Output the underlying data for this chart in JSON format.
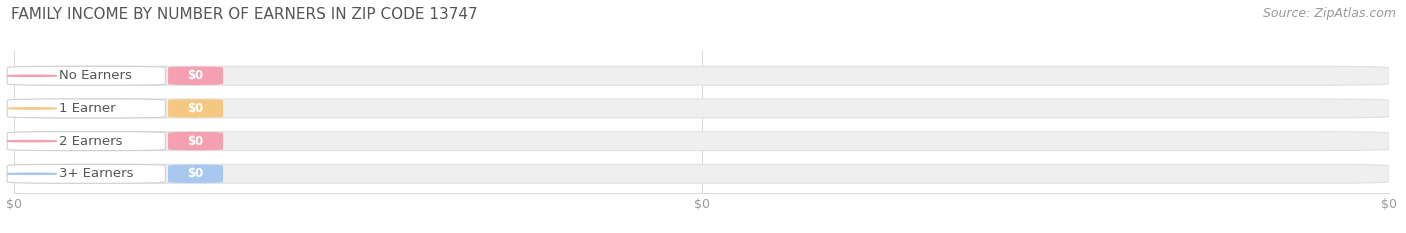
{
  "title": "FAMILY INCOME BY NUMBER OF EARNERS IN ZIP CODE 13747",
  "source": "Source: ZipAtlas.com",
  "categories": [
    "No Earners",
    "1 Earner",
    "2 Earners",
    "3+ Earners"
  ],
  "values": [
    0,
    0,
    0,
    0
  ],
  "bar_colors": [
    "#f4a0b0",
    "#f5c882",
    "#f4a0b0",
    "#a8c8f0"
  ],
  "value_labels": [
    "$0",
    "$0",
    "$0",
    "$0"
  ],
  "background_color": "#ffffff",
  "bar_bg_color": "#efefef",
  "bar_bg_edge_color": "#e0e0e0",
  "label_pill_color": "#ffffff",
  "label_pill_edge": "#d0d0d0",
  "grid_color": "#d8d8d8",
  "tick_label_color": "#999999",
  "title_color": "#555555",
  "source_color": "#999999",
  "cat_text_color": "#555555",
  "title_fontsize": 11,
  "source_fontsize": 9,
  "label_fontsize": 9.5,
  "value_fontsize": 8.5,
  "xtick_fontsize": 9,
  "xlim": [
    0,
    1
  ],
  "xtick_positions": [
    0,
    0.5,
    1.0
  ],
  "xtick_labels": [
    "$0",
    "$0",
    "$0"
  ]
}
